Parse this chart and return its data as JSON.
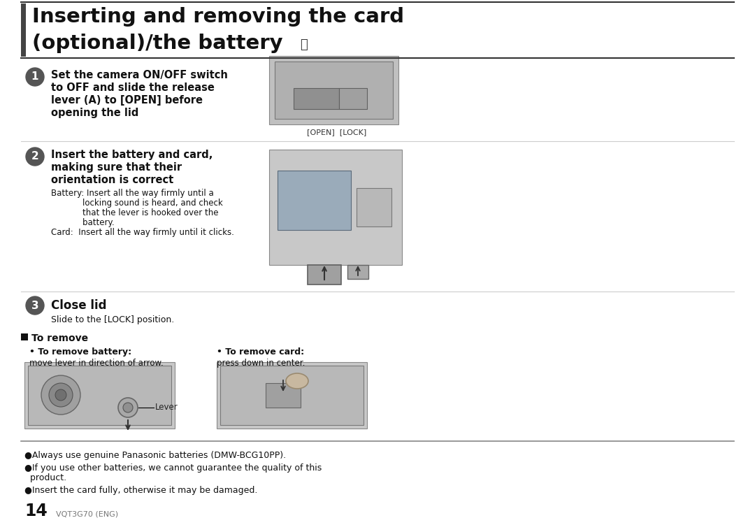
{
  "title_line1": "Inserting and removing the card",
  "title_line2": "(optional)/the battery",
  "bg_color": "#ffffff",
  "step1_bold_1": "Set the camera ON/OFF switch",
  "step1_bold_2": "to OFF and slide the release",
  "step1_bold_3": "lever (A) to [OPEN] before",
  "step1_bold_4": "opening the lid",
  "step1_img_label": "[OPEN]  [LOCK]",
  "step2_bold_1": "Insert the battery and card,",
  "step2_bold_2": "making sure that their",
  "step2_bold_3": "orientation is correct",
  "step2_text_1": "Battery: Insert all the way firmly until a",
  "step2_text_2": "            locking sound is heard, and check",
  "step2_text_3": "            that the lever is hooked over the",
  "step2_text_4": "            battery.",
  "step2_text_5": "Card:  Insert all the way firmly until it clicks.",
  "step3_bold": "Close lid",
  "step3_text": "Slide to the [LOCK] position.",
  "to_remove_header": "To remove",
  "remove_battery_bold": "To remove battery:",
  "remove_battery_text": "move lever in direction of arrow.",
  "remove_card_bold": "To remove card:",
  "remove_card_text": "press down in center.",
  "lever_label": "Lever",
  "bullet1": "Always use genuine Panasonic batteries (DMW-BCG10PP).",
  "bullet2": "If you use other batteries, we cannot guarantee the quality of this",
  "bullet2b": "product.",
  "bullet3": "Insert the card fully, otherwise it may be damaged.",
  "page_num": "14",
  "page_code": "VQT3G70 (ENG)",
  "step_num_bg": "#5a5a5a",
  "line_color": "#888888",
  "title_accent_color": "#3a3a3a"
}
